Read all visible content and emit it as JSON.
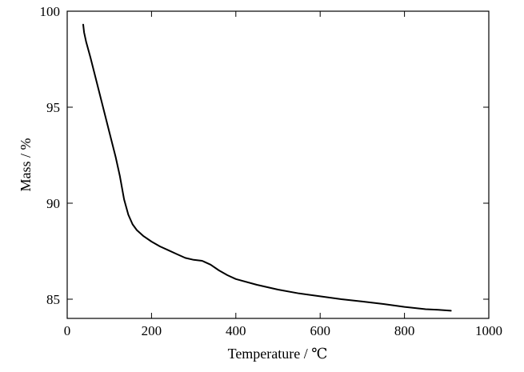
{
  "chart_data": {
    "type": "line",
    "title": "",
    "xlabel": "Temperature / ℃",
    "ylabel": "Mass / %",
    "xlim": [
      0,
      1000
    ],
    "ylim": [
      84,
      100
    ],
    "xticks": [
      0,
      200,
      400,
      600,
      800,
      1000
    ],
    "yticks": [
      85,
      90,
      95,
      100
    ],
    "xtick_labels": [
      "0",
      "200",
      "400",
      "600",
      "800",
      "1000"
    ],
    "ytick_labels": [
      "85",
      "90",
      "95",
      "100"
    ],
    "grid": false,
    "legend": "none",
    "line_color": "#000000",
    "series": [
      {
        "x": [
          38,
          40,
          45,
          55,
          70,
          85,
          100,
          115,
          125,
          135,
          145,
          155,
          165,
          180,
          200,
          220,
          240,
          260,
          280,
          300,
          320,
          340,
          360,
          380,
          400,
          450,
          500,
          550,
          600,
          650,
          700,
          750,
          800,
          850,
          880,
          910
        ],
        "y": [
          99.3,
          98.9,
          98.4,
          97.6,
          96.3,
          95.0,
          93.7,
          92.4,
          91.4,
          90.2,
          89.4,
          88.9,
          88.6,
          88.3,
          88.0,
          87.75,
          87.55,
          87.35,
          87.15,
          87.05,
          87.0,
          86.8,
          86.5,
          86.25,
          86.05,
          85.75,
          85.5,
          85.3,
          85.15,
          85.0,
          84.88,
          84.75,
          84.6,
          84.48,
          84.45,
          84.4
        ]
      }
    ]
  }
}
